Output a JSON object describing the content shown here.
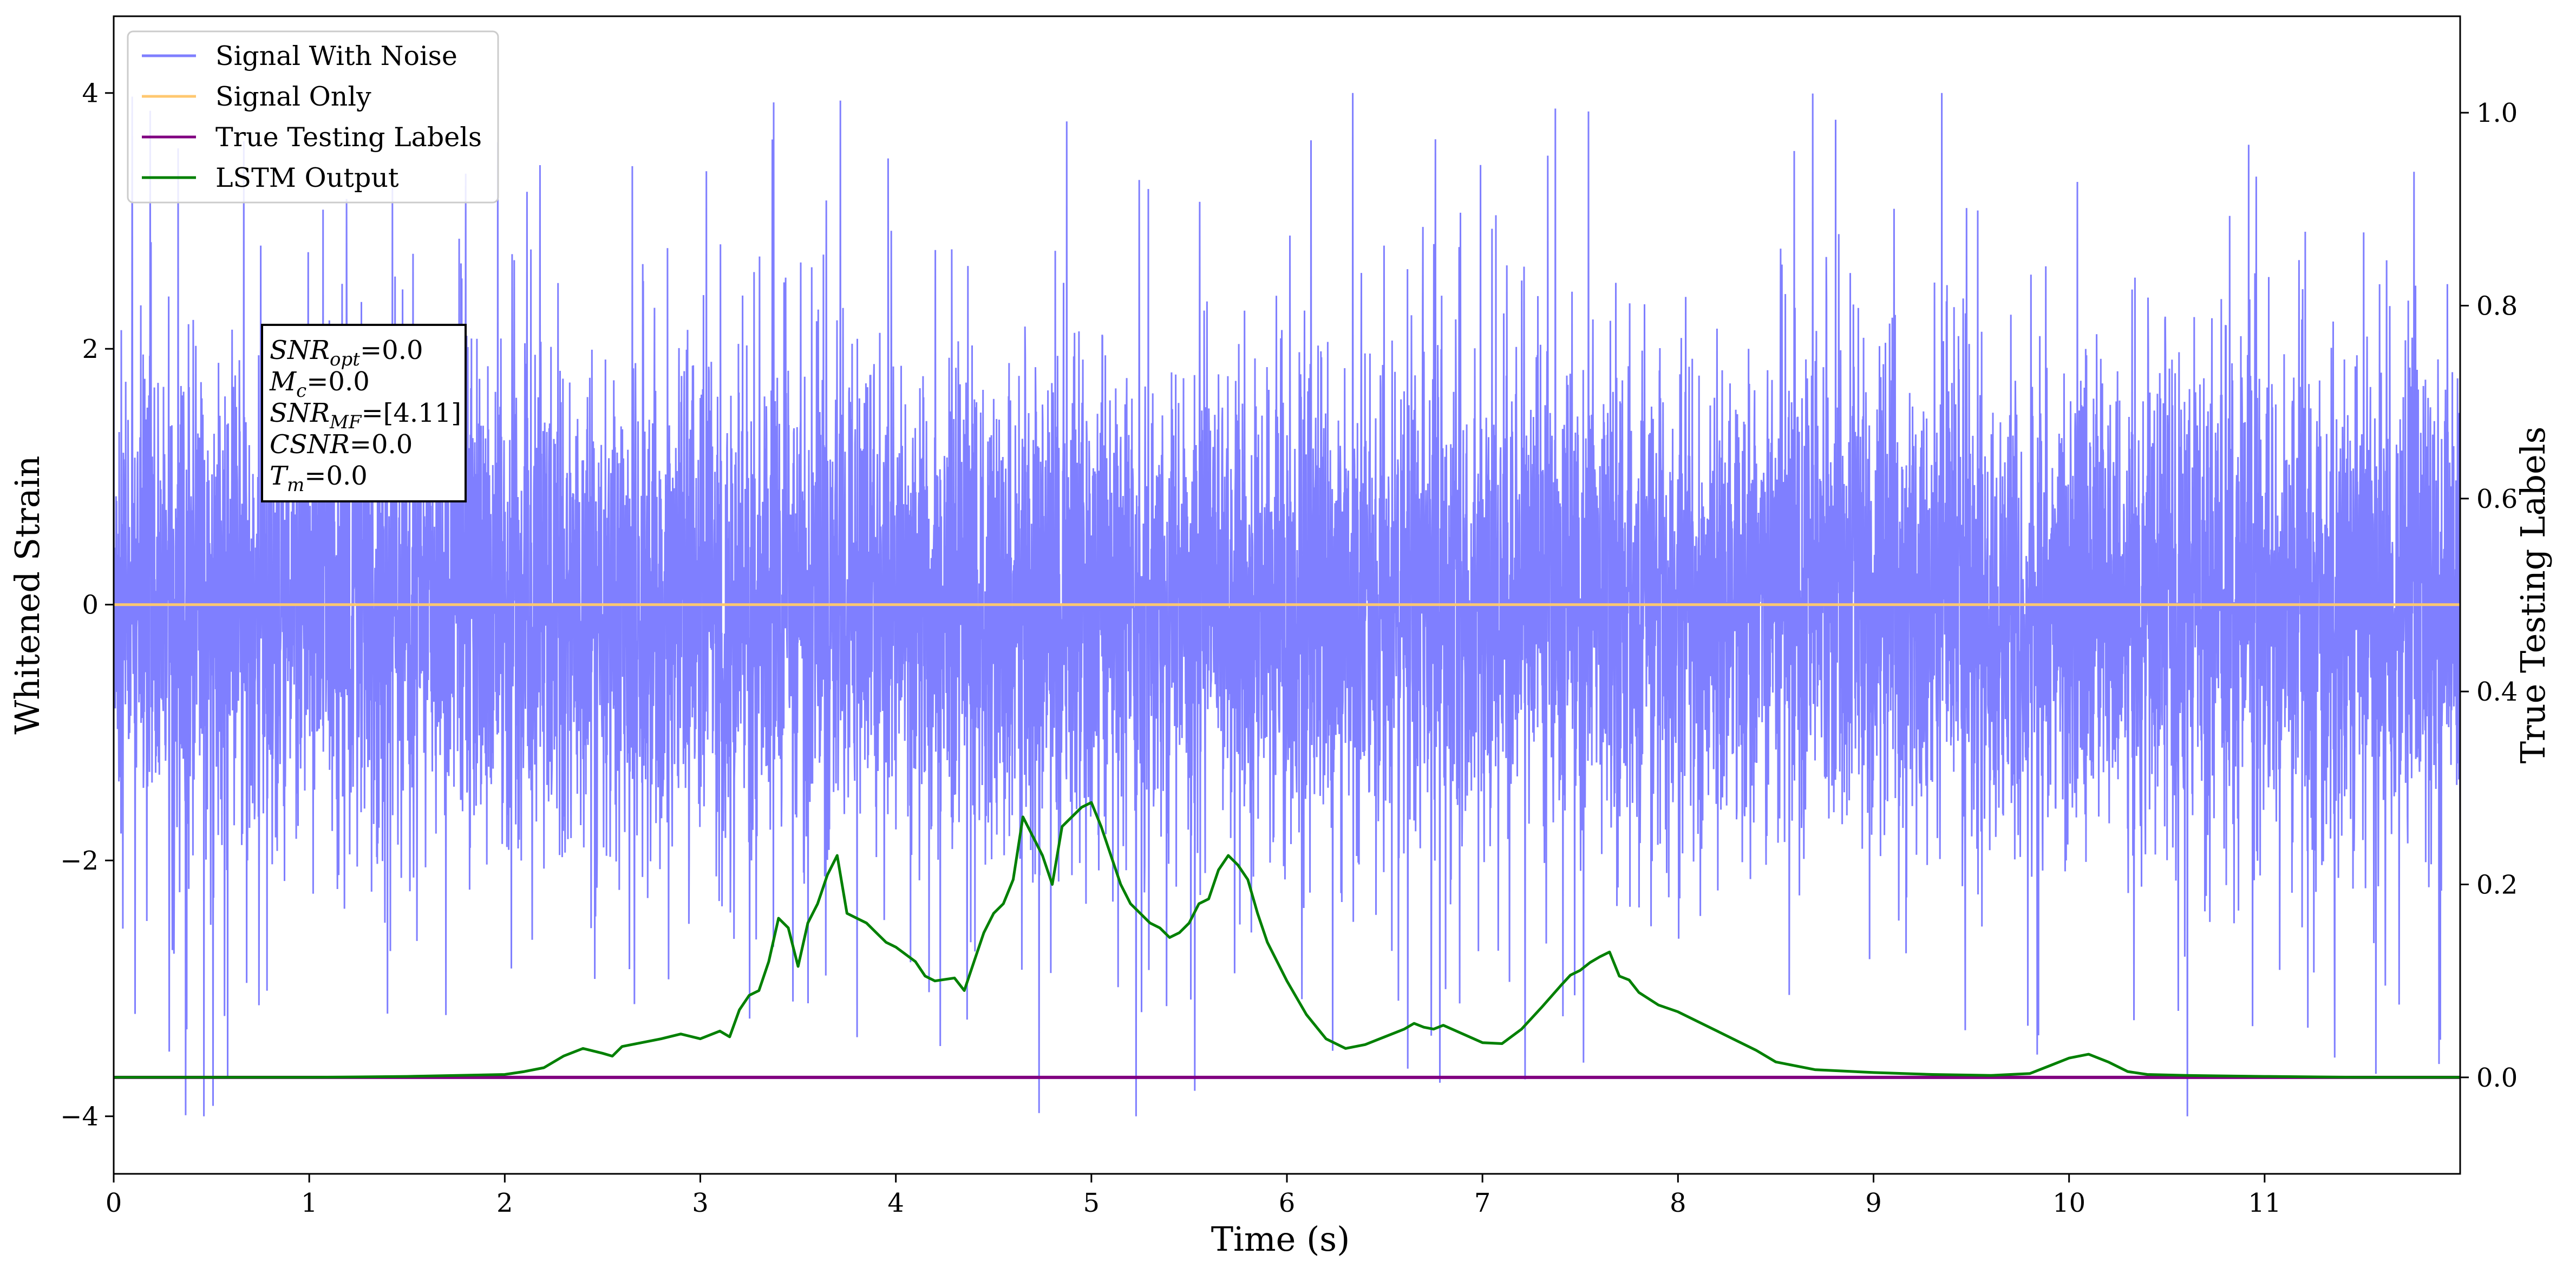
{
  "chart_data": {
    "type": "line",
    "xlabel": "Time (s)",
    "ylabel": "Whitened Strain",
    "y2label": "True Testing Labels",
    "xlim": [
      0,
      12
    ],
    "ylim": [
      -4.45,
      4.6
    ],
    "y2lim": [
      -0.1,
      1.1
    ],
    "xticks": [
      0,
      1,
      2,
      3,
      4,
      5,
      6,
      7,
      8,
      9,
      10,
      11
    ],
    "yticks": [
      -4,
      -2,
      0,
      2,
      4
    ],
    "y2ticks": [
      0.0,
      0.2,
      0.4,
      0.6,
      0.8,
      1.0
    ],
    "y2tick_labels": [
      "0.0",
      "0.2",
      "0.4",
      "0.6",
      "0.8",
      "1.0"
    ],
    "grid": false,
    "legend_position": "top-left",
    "series": [
      {
        "name": "Signal With Noise",
        "color": "#7f7fff",
        "axis": "left",
        "description_values": {
          "typical_range": [
            -1.6,
            1.6
          ],
          "outlier_min": -4.0,
          "outlier_max": 4.0
        }
      },
      {
        "name": "Signal Only",
        "color": "#ffc870",
        "axis": "left",
        "x": [
          0,
          12
        ],
        "y": [
          0,
          0
        ]
      },
      {
        "name": "True Testing Labels",
        "color": "#800080",
        "axis": "right",
        "x": [
          0,
          12
        ],
        "y": [
          0,
          0
        ]
      },
      {
        "name": "LSTM Output",
        "color": "#008000",
        "axis": "right",
        "x": [
          0.0,
          1.0,
          1.5,
          2.0,
          2.1,
          2.2,
          2.3,
          2.4,
          2.5,
          2.55,
          2.6,
          2.7,
          2.8,
          2.9,
          3.0,
          3.1,
          3.15,
          3.2,
          3.25,
          3.3,
          3.35,
          3.4,
          3.45,
          3.5,
          3.55,
          3.6,
          3.65,
          3.7,
          3.75,
          3.8,
          3.85,
          3.9,
          3.95,
          4.0,
          4.1,
          4.15,
          4.2,
          4.3,
          4.35,
          4.4,
          4.45,
          4.5,
          4.55,
          4.6,
          4.65,
          4.7,
          4.75,
          4.8,
          4.85,
          4.9,
          4.95,
          5.0,
          5.05,
          5.1,
          5.15,
          5.2,
          5.25,
          5.3,
          5.35,
          5.4,
          5.45,
          5.5,
          5.55,
          5.6,
          5.65,
          5.7,
          5.75,
          5.8,
          5.85,
          5.9,
          6.0,
          6.1,
          6.2,
          6.3,
          6.4,
          6.5,
          6.6,
          6.65,
          6.7,
          6.75,
          6.8,
          6.9,
          7.0,
          7.1,
          7.2,
          7.3,
          7.4,
          7.45,
          7.5,
          7.55,
          7.6,
          7.65,
          7.7,
          7.75,
          7.8,
          7.9,
          8.0,
          8.1,
          8.2,
          8.3,
          8.4,
          8.5,
          8.7,
          9.0,
          9.3,
          9.6,
          9.8,
          9.9,
          10.0,
          10.1,
          10.2,
          10.3,
          10.4,
          10.6,
          11.0,
          11.5,
          12.0
        ],
        "y": [
          0.0,
          0.0,
          0.001,
          0.003,
          0.006,
          0.01,
          0.022,
          0.03,
          0.025,
          0.022,
          0.032,
          0.036,
          0.04,
          0.045,
          0.04,
          0.048,
          0.042,
          0.07,
          0.085,
          0.09,
          0.12,
          0.165,
          0.155,
          0.115,
          0.16,
          0.18,
          0.21,
          0.23,
          0.17,
          0.165,
          0.16,
          0.15,
          0.14,
          0.135,
          0.12,
          0.105,
          0.1,
          0.103,
          0.09,
          0.12,
          0.15,
          0.17,
          0.18,
          0.205,
          0.27,
          0.25,
          0.23,
          0.2,
          0.26,
          0.27,
          0.28,
          0.285,
          0.26,
          0.23,
          0.2,
          0.18,
          0.17,
          0.16,
          0.155,
          0.145,
          0.15,
          0.16,
          0.18,
          0.185,
          0.215,
          0.23,
          0.22,
          0.205,
          0.17,
          0.14,
          0.1,
          0.065,
          0.04,
          0.03,
          0.034,
          0.042,
          0.05,
          0.056,
          0.052,
          0.05,
          0.054,
          0.045,
          0.036,
          0.035,
          0.05,
          0.072,
          0.095,
          0.106,
          0.111,
          0.119,
          0.125,
          0.13,
          0.105,
          0.101,
          0.088,
          0.075,
          0.068,
          0.058,
          0.048,
          0.038,
          0.028,
          0.016,
          0.008,
          0.005,
          0.003,
          0.002,
          0.004,
          0.012,
          0.02,
          0.024,
          0.016,
          0.006,
          0.003,
          0.002,
          0.001,
          0.0,
          0.0
        ]
      }
    ],
    "annotation": {
      "lines": [
        {
          "main": "SNR",
          "sub": "opt",
          "value": "=0.0"
        },
        {
          "main": "M",
          "sub": "c",
          "value": "=0.0"
        },
        {
          "main": "SNR",
          "sub": "MF",
          "value": "=[4.11]"
        },
        {
          "main": "CSNR",
          "sub": "",
          "value": "=0.0"
        },
        {
          "main": "T",
          "sub": "m",
          "value": "=0.0"
        }
      ]
    }
  }
}
